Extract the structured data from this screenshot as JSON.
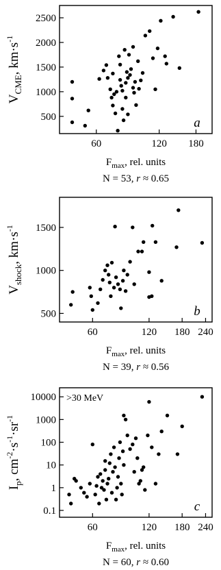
{
  "chart_data": [
    {
      "type": "scatter",
      "panel_label": "a",
      "annotation": "",
      "ylabel": {
        "main": "V",
        "sub": "CME",
        "units": "km·s",
        "sup": "-1"
      },
      "xlabel": {
        "main": "F",
        "sub": "max",
        "rest": ", rel. units"
      },
      "caption": {
        "n": "N = 53,",
        "r_symbol": "r",
        "r_value": "≈  0.65"
      },
      "x_scale": "log",
      "xlim": [
        40,
        215
      ],
      "ylim": [
        150,
        2750
      ],
      "xticks": [
        {
          "value": 60,
          "label": "60"
        },
        {
          "value": 120,
          "label": "120"
        },
        {
          "value": 180,
          "label": "180"
        }
      ],
      "yticks": [
        {
          "value": 500,
          "label": "500"
        },
        {
          "value": 1000,
          "label": "1000"
        },
        {
          "value": 1500,
          "label": "1500"
        },
        {
          "value": 2000,
          "label": "2000"
        },
        {
          "value": 2500,
          "label": "2500"
        }
      ],
      "points": [
        [
          46,
          1200
        ],
        [
          46,
          860
        ],
        [
          46,
          380
        ],
        [
          53,
          310
        ],
        [
          55,
          620
        ],
        [
          62,
          1260
        ],
        [
          65,
          1430
        ],
        [
          67,
          1540
        ],
        [
          68,
          1280
        ],
        [
          70,
          1050
        ],
        [
          71,
          880
        ],
        [
          72,
          1370
        ],
        [
          72,
          720
        ],
        [
          73,
          950
        ],
        [
          74,
          560
        ],
        [
          75,
          1000
        ],
        [
          76,
          210
        ],
        [
          77,
          1720
        ],
        [
          78,
          1240
        ],
        [
          78,
          1550
        ],
        [
          79,
          1120
        ],
        [
          80,
          1020
        ],
        [
          80,
          650
        ],
        [
          81,
          420
        ],
        [
          82,
          1850
        ],
        [
          83,
          1180
        ],
        [
          83,
          880
        ],
        [
          84,
          1400
        ],
        [
          85,
          1280
        ],
        [
          85,
          540
        ],
        [
          86,
          1750
        ],
        [
          87,
          1340
        ],
        [
          88,
          1460
        ],
        [
          90,
          1910
        ],
        [
          90,
          1080
        ],
        [
          91,
          980
        ],
        [
          92,
          1200
        ],
        [
          93,
          730
        ],
        [
          95,
          1620
        ],
        [
          96,
          1060
        ],
        [
          98,
          1230
        ],
        [
          100,
          1380
        ],
        [
          103,
          2140
        ],
        [
          108,
          2230
        ],
        [
          112,
          1680
        ],
        [
          115,
          1050
        ],
        [
          118,
          1880
        ],
        [
          122,
          2440
        ],
        [
          128,
          1720
        ],
        [
          130,
          1570
        ],
        [
          140,
          2520
        ],
        [
          150,
          1480
        ],
        [
          185,
          2620
        ]
      ]
    },
    {
      "type": "scatter",
      "panel_label": "b",
      "annotation": "",
      "ylabel": {
        "main": "V",
        "sub": "shock",
        "units": "km·s",
        "sup": "-1"
      },
      "xlabel": {
        "main": "F",
        "sub": "max",
        "rest": ", rel. units"
      },
      "caption": {
        "n": "N = 39,",
        "r_symbol": "r",
        "r_value": "≈  0.56"
      },
      "x_scale": "log",
      "xlim": [
        40,
        260
      ],
      "ylim": [
        400,
        1850
      ],
      "xticks": [
        {
          "value": 60,
          "label": "60"
        },
        {
          "value": 120,
          "label": "120"
        },
        {
          "value": 180,
          "label": "180"
        },
        {
          "value": 240,
          "label": "240"
        }
      ],
      "yticks": [
        {
          "value": 500,
          "label": "500"
        },
        {
          "value": 1000,
          "label": "1000"
        },
        {
          "value": 1500,
          "label": "1500"
        }
      ],
      "points": [
        [
          46,
          600
        ],
        [
          47,
          750
        ],
        [
          58,
          800
        ],
        [
          59,
          700
        ],
        [
          60,
          540
        ],
        [
          64,
          620
        ],
        [
          66,
          780
        ],
        [
          68,
          890
        ],
        [
          70,
          1000
        ],
        [
          72,
          1060
        ],
        [
          73,
          950
        ],
        [
          74,
          860
        ],
        [
          75,
          700
        ],
        [
          76,
          1090
        ],
        [
          78,
          800
        ],
        [
          79,
          1510
        ],
        [
          80,
          920
        ],
        [
          82,
          840
        ],
        [
          84,
          780
        ],
        [
          85,
          560
        ],
        [
          87,
          880
        ],
        [
          88,
          1000
        ],
        [
          90,
          760
        ],
        [
          92,
          950
        ],
        [
          95,
          1100
        ],
        [
          98,
          1500
        ],
        [
          105,
          1220
        ],
        [
          110,
          1220
        ],
        [
          112,
          1330
        ],
        [
          120,
          690
        ],
        [
          124,
          700
        ],
        [
          125,
          1520
        ],
        [
          130,
          1330
        ],
        [
          140,
          880
        ],
        [
          168,
          1270
        ],
        [
          172,
          1700
        ],
        [
          230,
          1320
        ],
        [
          120,
          980
        ],
        [
          100,
          840
        ]
      ]
    },
    {
      "type": "scatter",
      "panel_label": "c",
      "annotation": ">30 MeV",
      "ylabel": {
        "main": "I",
        "sub": "p",
        "units": "cm",
        "sup": "-2",
        "units2": "·s",
        "sup2": "-1",
        "units3": "·sr",
        "sup3": "-1"
      },
      "xlabel": {
        "main": "F",
        "sub": "max",
        "rest": ", rel. units"
      },
      "caption": {
        "n": "N = 60,",
        "r_symbol": "r",
        "r_value": "≈  0.60"
      },
      "x_scale": "log",
      "y_scale": "log",
      "xlim": [
        40,
        260
      ],
      "ylim": [
        0.05,
        25000
      ],
      "xticks": [
        {
          "value": 60,
          "label": "60"
        },
        {
          "value": 120,
          "label": "120"
        },
        {
          "value": 180,
          "label": "180"
        },
        {
          "value": 240,
          "label": "240"
        }
      ],
      "yticks": [
        {
          "value": 0.1,
          "label": "0.1"
        },
        {
          "value": 1,
          "label": "1"
        },
        {
          "value": 10,
          "label": "10"
        },
        {
          "value": 100,
          "label": "100"
        },
        {
          "value": 1000,
          "label": "1000"
        },
        {
          "value": 10000,
          "label": "10000"
        }
      ],
      "points": [
        [
          45,
          0.5
        ],
        [
          46,
          0.2
        ],
        [
          48,
          2.5
        ],
        [
          49,
          2
        ],
        [
          52,
          1
        ],
        [
          54,
          0.6
        ],
        [
          56,
          0.4
        ],
        [
          58,
          1.5
        ],
        [
          60,
          80
        ],
        [
          62,
          0.5
        ],
        [
          63,
          1.2
        ],
        [
          64,
          3
        ],
        [
          65,
          0.2
        ],
        [
          66,
          4
        ],
        [
          67,
          1
        ],
        [
          68,
          2
        ],
        [
          69,
          0.8
        ],
        [
          70,
          6
        ],
        [
          70,
          15
        ],
        [
          71,
          0.3
        ],
        [
          72,
          1.5
        ],
        [
          73,
          2.5
        ],
        [
          74,
          12
        ],
        [
          75,
          30
        ],
        [
          76,
          0.6
        ],
        [
          77,
          5
        ],
        [
          78,
          60
        ],
        [
          79,
          8
        ],
        [
          80,
          0.3
        ],
        [
          81,
          1
        ],
        [
          82,
          3
        ],
        [
          83,
          20
        ],
        [
          84,
          100
        ],
        [
          85,
          1.5
        ],
        [
          86,
          0.5
        ],
        [
          87,
          40
        ],
        [
          88,
          1500
        ],
        [
          88,
          10
        ],
        [
          90,
          1000
        ],
        [
          92,
          200
        ],
        [
          95,
          50
        ],
        [
          98,
          80
        ],
        [
          100,
          5
        ],
        [
          102,
          150
        ],
        [
          104,
          20
        ],
        [
          106,
          1.5
        ],
        [
          108,
          2
        ],
        [
          110,
          6
        ],
        [
          112,
          8
        ],
        [
          114,
          0.8
        ],
        [
          118,
          200
        ],
        [
          120,
          6000
        ],
        [
          124,
          60
        ],
        [
          130,
          1.5
        ],
        [
          135,
          30
        ],
        [
          140,
          300
        ],
        [
          150,
          1500
        ],
        [
          170,
          30
        ],
        [
          180,
          500
        ],
        [
          230,
          10000
        ]
      ]
    }
  ]
}
